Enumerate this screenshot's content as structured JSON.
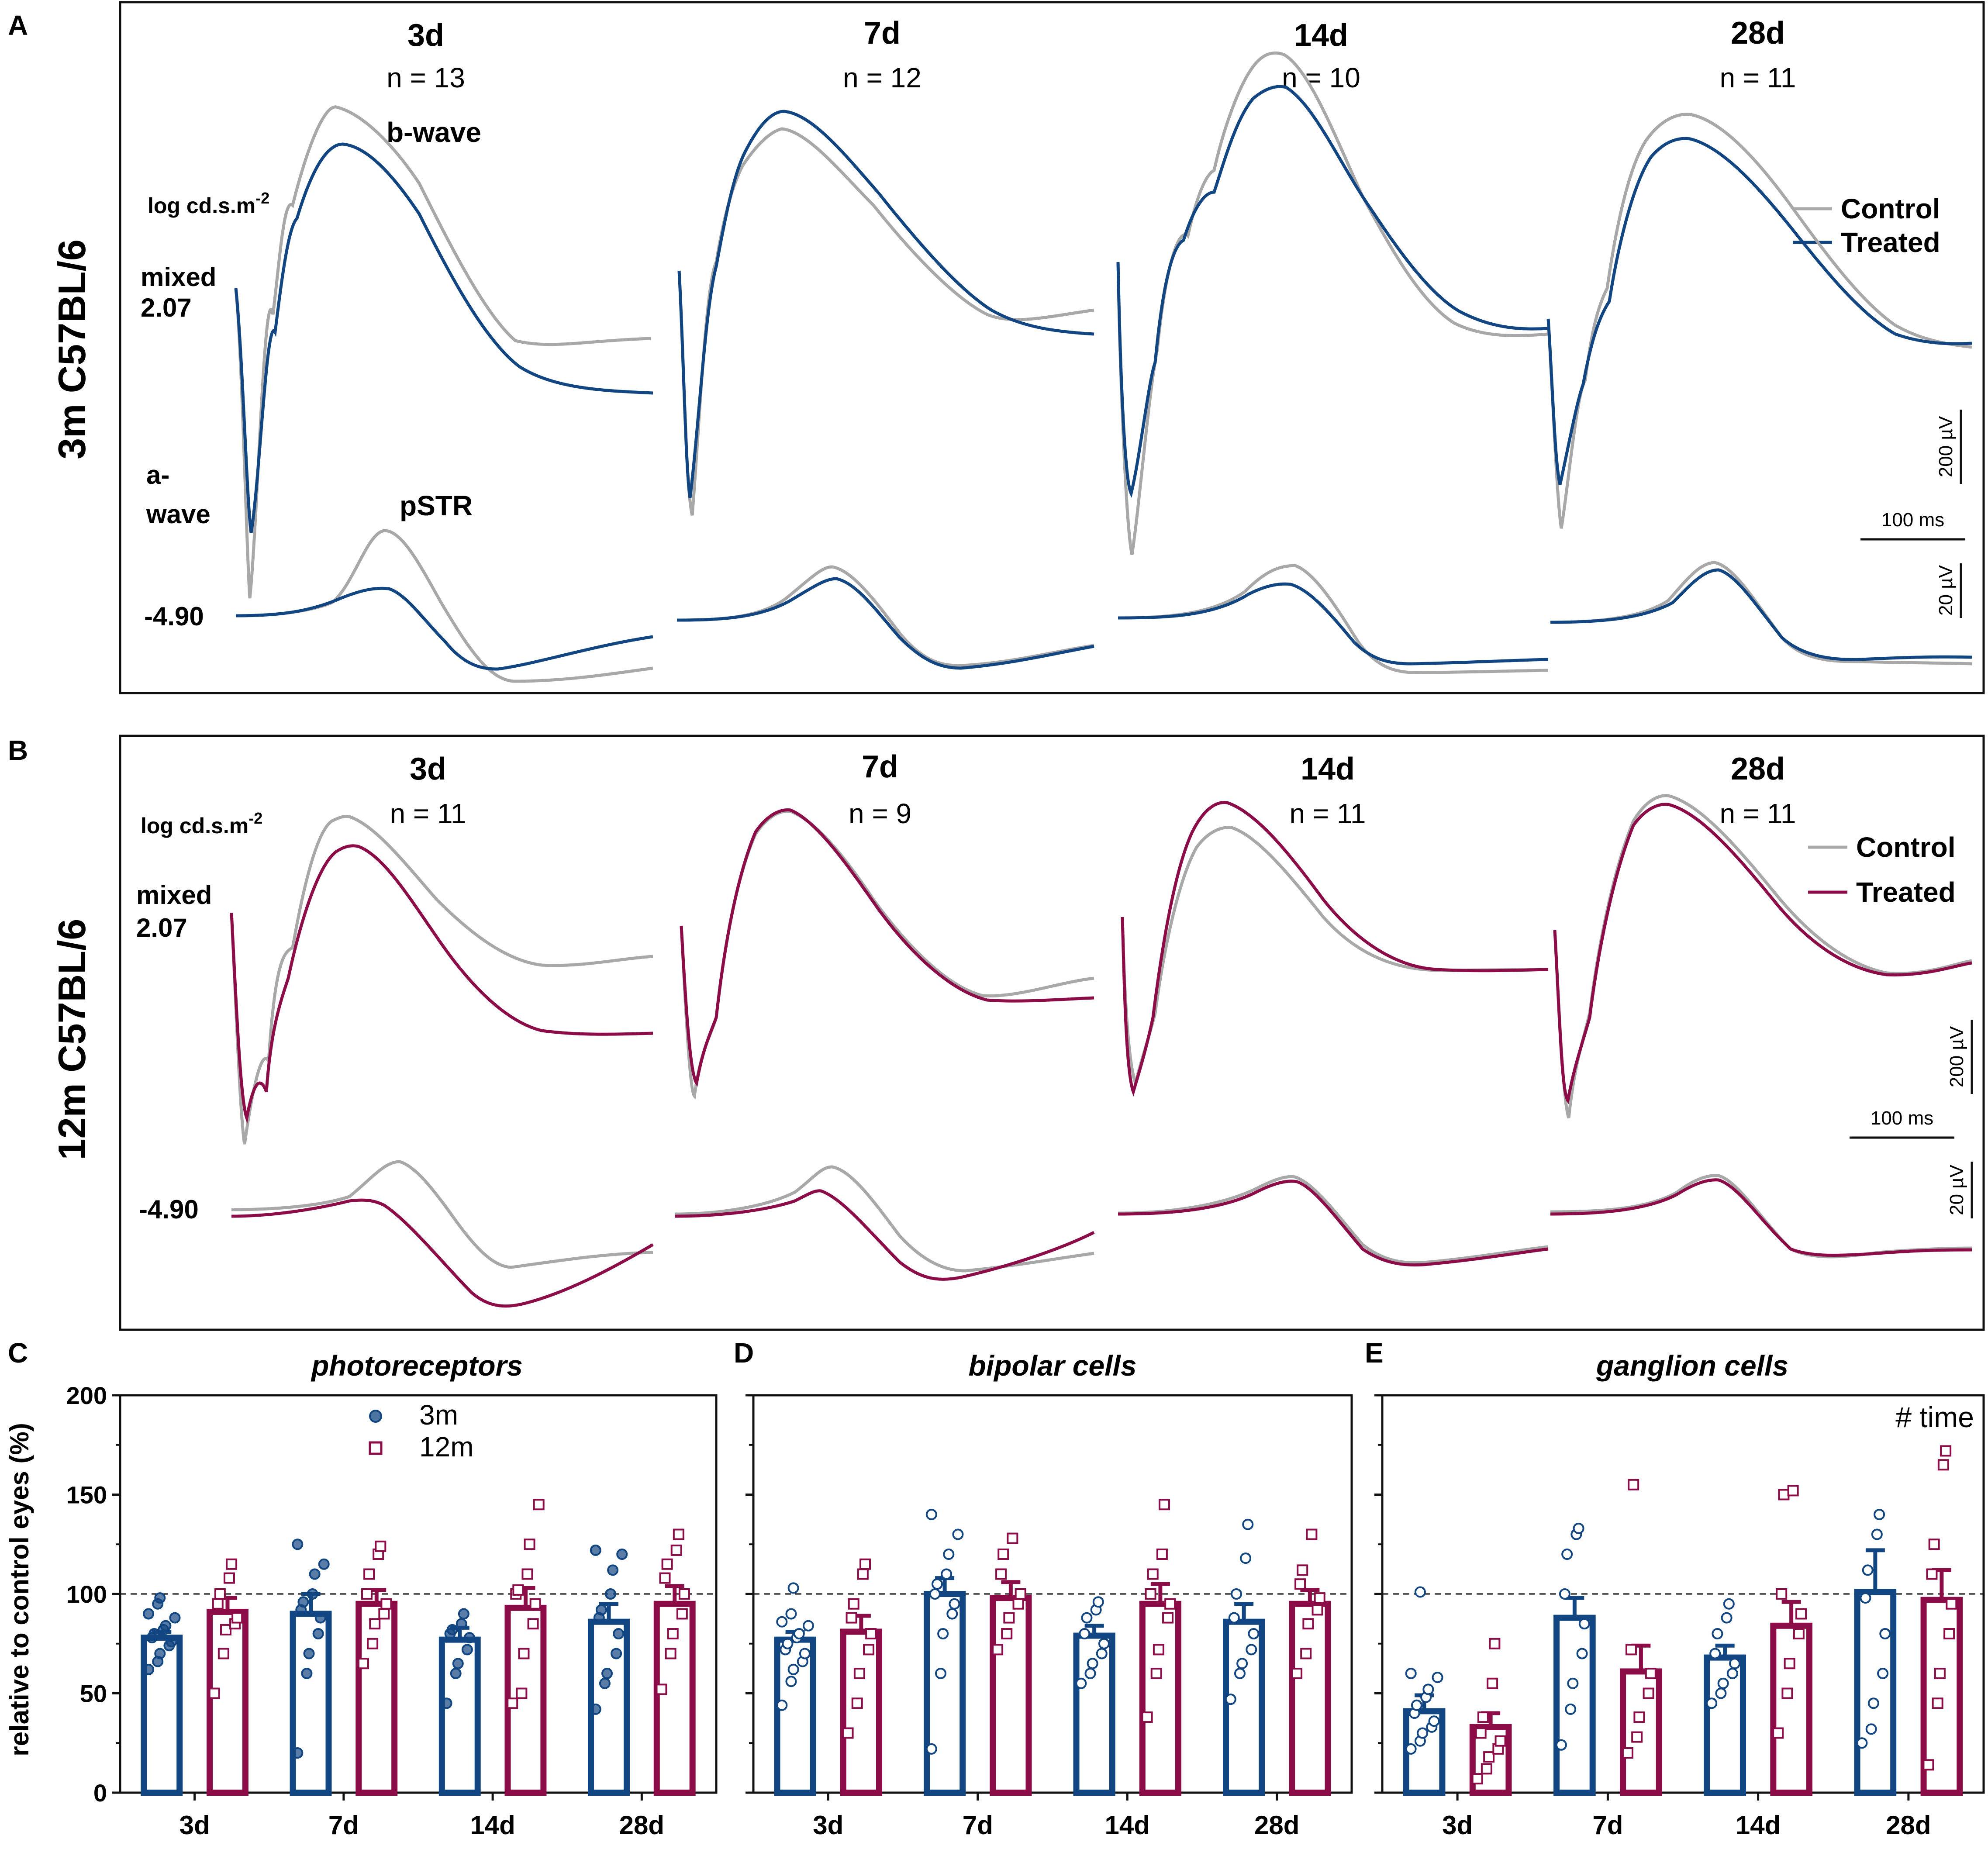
{
  "figure": {
    "colors": {
      "control": "#a8a8a8",
      "treated_3m": "#124682",
      "treated_12m": "#8b0c47",
      "frame": "#111111"
    },
    "panel_letters": [
      "A",
      "B",
      "C",
      "D",
      "E"
    ]
  },
  "trace_panels": [
    {
      "letter": "A",
      "row_label": "3m C57BL/6",
      "intensity_unit": "log cd.s.m-2",
      "mixed_label": "mixed",
      "mixed_value": "2.07",
      "scotopic_value": "-4.90",
      "wave_labels": {
        "b_wave": "b-wave",
        "a_wave_1": "a-",
        "a_wave_2": "wave",
        "pstr": "pSTR"
      },
      "legend": {
        "control": "Control",
        "treated": "Treated"
      },
      "scale_bars": {
        "mixed_amp": "200 µV",
        "time": "100 ms",
        "pstr_amp": "20 µV"
      },
      "timepoints": [
        {
          "day": "3d",
          "n": "n = 13"
        },
        {
          "day": "7d",
          "n": "n = 12"
        },
        {
          "day": "14d",
          "n": "n = 10"
        },
        {
          "day": "28d",
          "n": "n = 11"
        }
      ]
    },
    {
      "letter": "B",
      "row_label": "12m C57BL/6",
      "intensity_unit": "log cd.s.m-2",
      "mixed_label": "mixed",
      "mixed_value": "2.07",
      "scotopic_value": "-4.90",
      "legend": {
        "control": "Control",
        "treated": "Treated"
      },
      "scale_bars": {
        "mixed_amp": "200 µV",
        "time": "100 ms",
        "pstr_amp": "20 µV"
      },
      "timepoints": [
        {
          "day": "3d",
          "n": "n = 11"
        },
        {
          "day": "7d",
          "n": "n = 9"
        },
        {
          "day": "14d",
          "n": "n = 11"
        },
        {
          "day": "28d",
          "n": "n = 11"
        }
      ]
    }
  ],
  "chart_data": [
    {
      "panel": "C",
      "type": "bar",
      "title": "photoreceptors",
      "ylabel": "relative to control eyes (%)",
      "ylim": [
        0,
        200
      ],
      "yticks": [
        "0",
        "50",
        "100",
        "150",
        "200"
      ],
      "reference_line": 100,
      "categories": [
        "3d",
        "7d",
        "14d",
        "28d"
      ],
      "legend": {
        "s3m": "3m",
        "s12m": "12m"
      },
      "series": [
        {
          "name": "3m",
          "means": [
            78,
            90,
            77,
            86
          ],
          "sems": [
            3,
            10,
            6,
            9
          ],
          "points": [
            [
              62,
              66,
              70,
              74,
              76,
              78,
              80,
              82,
              84,
              88,
              90,
              95,
              98
            ],
            [
              20,
              60,
              70,
              80,
              88,
              92,
              96,
              100,
              110,
              115,
              125
            ],
            [
              45,
              60,
              65,
              72,
              78,
              80,
              82,
              85,
              90
            ],
            [
              42,
              55,
              60,
              70,
              80,
              88,
              92,
              100,
              112,
              120,
              122
            ]
          ]
        },
        {
          "name": "12m",
          "means": [
            91,
            95,
            93,
            95
          ],
          "sems": [
            7,
            7,
            10,
            9
          ],
          "points": [
            [
              50,
              70,
              82,
              85,
              88,
              95,
              100,
              108,
              115
            ],
            [
              65,
              75,
              85,
              90,
              95,
              100,
              110,
              120,
              124
            ],
            [
              45,
              50,
              70,
              85,
              95,
              100,
              102,
              110,
              125,
              145
            ],
            [
              52,
              70,
              80,
              90,
              100,
              108,
              115,
              122,
              130
            ]
          ]
        }
      ]
    },
    {
      "panel": "D",
      "type": "bar",
      "title": "bipolar cells",
      "ylim": [
        0,
        200
      ],
      "reference_line": 100,
      "categories": [
        "3d",
        "7d",
        "14d",
        "28d"
      ],
      "series": [
        {
          "name": "3m",
          "means": [
            77,
            100,
            79,
            86
          ],
          "sems": [
            4,
            8,
            5,
            9
          ],
          "points": [
            [
              44,
              56,
              62,
              66,
              70,
              72,
              75,
              78,
              80,
              84,
              86,
              90,
              103
            ],
            [
              22,
              60,
              80,
              90,
              95,
              100,
              105,
              110,
              120,
              130,
              140
            ],
            [
              55,
              60,
              65,
              70,
              75,
              80,
              88,
              92,
              96
            ],
            [
              47,
              60,
              65,
              72,
              80,
              88,
              100,
              118,
              135
            ]
          ]
        },
        {
          "name": "12m",
          "means": [
            81,
            98,
            95,
            95
          ],
          "sems": [
            8,
            8,
            10,
            7
          ],
          "points": [
            [
              30,
              45,
              60,
              72,
              80,
              88,
              95,
              110,
              115
            ],
            [
              72,
              80,
              88,
              95,
              100,
              110,
              120,
              128
            ],
            [
              38,
              60,
              72,
              88,
              95,
              100,
              110,
              120,
              145
            ],
            [
              60,
              70,
              85,
              92,
              98,
              105,
              112,
              130
            ]
          ]
        }
      ]
    },
    {
      "panel": "E",
      "type": "bar",
      "title": "ganglion cells",
      "annotation": "# time",
      "ylim": [
        0,
        200
      ],
      "reference_line": 100,
      "categories": [
        "3d",
        "7d",
        "14d",
        "28d"
      ],
      "series": [
        {
          "name": "3m",
          "means": [
            41,
            88,
            68,
            101
          ],
          "sems": [
            8,
            10,
            6,
            21
          ],
          "points": [
            [
              22,
              26,
              30,
              33,
              36,
              40,
              44,
              48,
              52,
              58,
              60,
              101
            ],
            [
              24,
              42,
              55,
              70,
              85,
              100,
              120,
              130,
              133
            ],
            [
              45,
              50,
              55,
              60,
              65,
              70,
              80,
              88,
              95
            ],
            [
              25,
              32,
              45,
              60,
              80,
              98,
              112,
              130,
              140
            ]
          ]
        },
        {
          "name": "12m",
          "means": [
            33,
            61,
            84,
            97
          ],
          "sems": [
            7,
            13,
            12,
            15
          ],
          "points": [
            [
              7,
              12,
              18,
              22,
              26,
              30,
              38,
              55,
              75
            ],
            [
              20,
              28,
              38,
              50,
              60,
              72,
              155
            ],
            [
              30,
              50,
              65,
              80,
              90,
              100,
              150,
              152
            ],
            [
              14,
              45,
              60,
              80,
              95,
              110,
              125,
              165,
              172
            ]
          ]
        }
      ]
    }
  ]
}
